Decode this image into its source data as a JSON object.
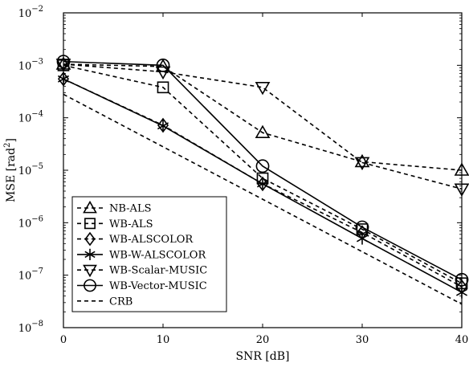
{
  "chart_data": {
    "type": "line",
    "title": "",
    "xlabel": "SNR [dB]",
    "ylabel": "MSE [rad²]",
    "ylabel_base": "MSE [rad",
    "ylabel_sup": "2",
    "ylabel_end": "]",
    "x": [
      0,
      10,
      20,
      30,
      40
    ],
    "xlim": [
      0,
      40
    ],
    "ylim": [
      1e-08,
      0.01
    ],
    "yscale": "log",
    "x_ticks": [
      "0",
      "10",
      "20",
      "30",
      "40"
    ],
    "y_ticks": [
      {
        "base": "10",
        "exp": "−8"
      },
      {
        "base": "10",
        "exp": "−7"
      },
      {
        "base": "10",
        "exp": "−6"
      },
      {
        "base": "10",
        "exp": "−5"
      },
      {
        "base": "10",
        "exp": "−4"
      },
      {
        "base": "10",
        "exp": "−3"
      },
      {
        "base": "10",
        "exp": "−2"
      }
    ],
    "legend_position": "bottom-left",
    "series": [
      {
        "name": "NB-ALS",
        "marker": "triangle-up",
        "style": "dashed",
        "values": [
          0.00105,
          0.00095,
          5.2e-05,
          1.45e-05,
          1e-05
        ]
      },
      {
        "name": "WB-ALS",
        "marker": "square",
        "style": "dashed",
        "values": [
          0.001,
          0.00038,
          7e-06,
          7.5e-07,
          7e-08
        ]
      },
      {
        "name": "WB-ALSCOLOR",
        "marker": "diamond",
        "style": "dashed",
        "values": [
          0.00055,
          7.2e-05,
          5.5e-06,
          6.5e-07,
          6e-08
        ]
      },
      {
        "name": "WB-W-ALSCOLOR",
        "marker": "asterisk",
        "style": "solid",
        "values": [
          0.00055,
          7e-05,
          5.5e-06,
          5e-07,
          4.7e-08
        ]
      },
      {
        "name": "WB-Scalar-MUSIC",
        "marker": "triangle-down",
        "style": "dashed",
        "values": [
          0.00105,
          0.00075,
          0.00038,
          1.4e-05,
          4.4e-06
        ]
      },
      {
        "name": "WB-Vector-MUSIC",
        "marker": "circle",
        "style": "solid",
        "values": [
          0.00118,
          0.001,
          1.2e-05,
          8.2e-07,
          8.2e-08
        ]
      },
      {
        "name": "CRB",
        "marker": "none",
        "style": "dashed",
        "values": [
          0.00028,
          2.8e-05,
          2.8e-06,
          2.8e-07,
          2.8e-08
        ]
      }
    ]
  }
}
